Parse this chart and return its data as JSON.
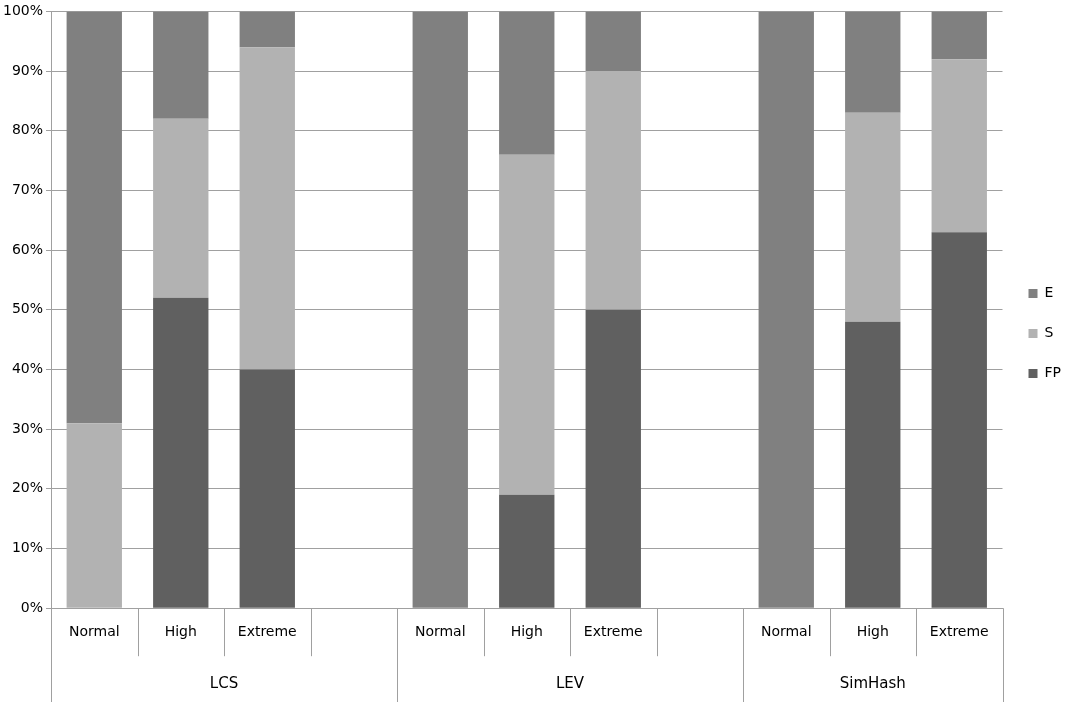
{
  "chart_data": {
    "type": "bar",
    "stacked": true,
    "categories": [
      "Normal",
      "High",
      "Extreme",
      null,
      "Normal",
      "High",
      "Extreme",
      null,
      "Normal",
      "High",
      "Extreme"
    ],
    "series": [
      {
        "name": "FP",
        "color": "#606060",
        "values": [
          0,
          52,
          40,
          0,
          0,
          19,
          50,
          0,
          0,
          48,
          63
        ]
      },
      {
        "name": "S",
        "color": "#b2b2b2",
        "values": [
          31,
          30,
          54,
          0,
          0,
          57,
          40,
          0,
          0,
          35,
          29
        ]
      },
      {
        "name": "E",
        "color": "#808080",
        "values": [
          69,
          18,
          6,
          0,
          100,
          24,
          10,
          0,
          100,
          17,
          8
        ]
      }
    ],
    "ylim": [
      0,
      100
    ],
    "yticks": [
      {
        "value": 0,
        "label": "0%"
      },
      {
        "value": 10,
        "label": "10%"
      },
      {
        "value": 20,
        "label": "20%"
      },
      {
        "value": 30,
        "label": "30%"
      },
      {
        "value": 40,
        "label": "40%"
      },
      {
        "value": 50,
        "label": "50%"
      },
      {
        "value": 60,
        "label": "60%"
      },
      {
        "value": 70,
        "label": "70%"
      },
      {
        "value": 80,
        "label": "80%"
      },
      {
        "value": 90,
        "label": "90%"
      },
      {
        "value": 100,
        "label": "100%"
      }
    ],
    "grid": "y",
    "legend": "right",
    "annotations": [
      "LCS",
      "LEV",
      "SimHash"
    ]
  }
}
